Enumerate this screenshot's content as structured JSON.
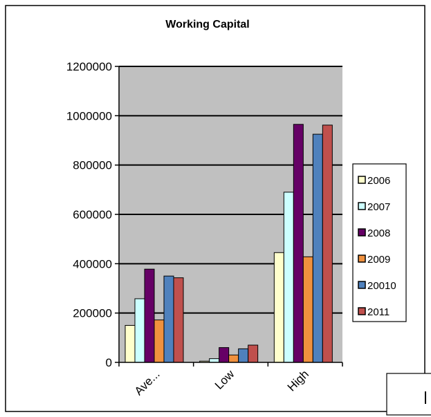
{
  "chart_data": {
    "type": "bar",
    "title": "Working Capital",
    "xlabel": "",
    "ylabel": "",
    "categories": [
      "Ave...",
      "Low",
      "High"
    ],
    "ylim": [
      0,
      1200000
    ],
    "y_ticks": [
      0,
      200000,
      400000,
      600000,
      800000,
      1000000,
      1200000
    ],
    "y_tick_labels": [
      "0",
      "200000",
      "400000",
      "600000",
      "800000",
      "1000000",
      "1200000"
    ],
    "grid": true,
    "legend_position": "right",
    "series": [
      {
        "name": "2006",
        "color": "#ffffcc",
        "values": [
          150000,
          5000,
          445000
        ]
      },
      {
        "name": "2007",
        "color": "#ccffff",
        "values": [
          258000,
          15000,
          690000
        ]
      },
      {
        "name": "2008",
        "color": "#660066",
        "values": [
          378000,
          60000,
          965000
        ]
      },
      {
        "name": "2009",
        "color": "#f0913e",
        "values": [
          172000,
          30000,
          428000
        ]
      },
      {
        "name": "20010",
        "color": "#4f81bd",
        "values": [
          350000,
          55000,
          925000
        ]
      },
      {
        "name": "2011",
        "color": "#c0504d",
        "values": [
          343000,
          70000,
          962000
        ]
      }
    ],
    "plot_background": "#c0c0c0"
  }
}
